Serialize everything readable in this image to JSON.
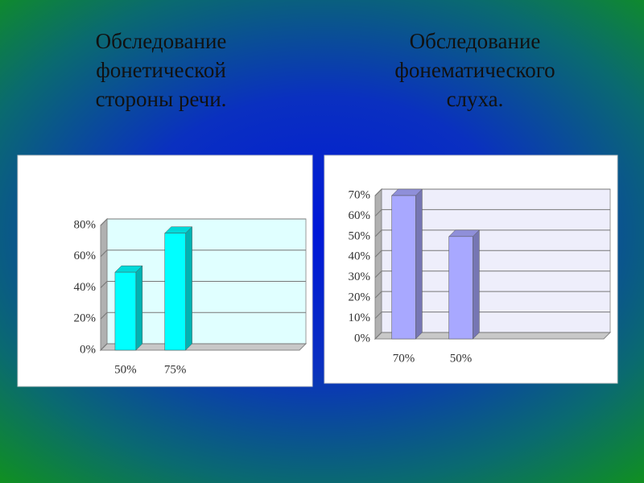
{
  "chart_data": [
    {
      "type": "bar",
      "title": "Обследование\nфонетической\nстороны речи.",
      "categories": [
        "50%",
        "75%",
        null,
        null
      ],
      "values": [
        50,
        75,
        null,
        null
      ],
      "color": "#00ffff",
      "ylim": [
        0,
        80
      ],
      "yticks": [
        {
          "value": 0,
          "label": "0%"
        },
        {
          "value": 20,
          "label": "20%"
        },
        {
          "value": 40,
          "label": "40%"
        },
        {
          "value": 60,
          "label": "60%"
        },
        {
          "value": 80,
          "label": "80%"
        }
      ],
      "grid": true
    },
    {
      "type": "bar",
      "title": "Обследование\nфонематического\nслуха.",
      "categories": [
        "70%",
        "50%",
        null,
        null
      ],
      "values": [
        70,
        50,
        null,
        null
      ],
      "color": "#a8a8ff",
      "ylim": [
        0,
        70
      ],
      "yticks": [
        {
          "value": 0,
          "label": "0%"
        },
        {
          "value": 10,
          "label": "10%"
        },
        {
          "value": 20,
          "label": "20%"
        },
        {
          "value": 30,
          "label": "30%"
        },
        {
          "value": 40,
          "label": "40%"
        },
        {
          "value": 50,
          "label": "50%"
        },
        {
          "value": 60,
          "label": "60%"
        },
        {
          "value": 70,
          "label": "70%"
        }
      ],
      "grid": true
    }
  ]
}
